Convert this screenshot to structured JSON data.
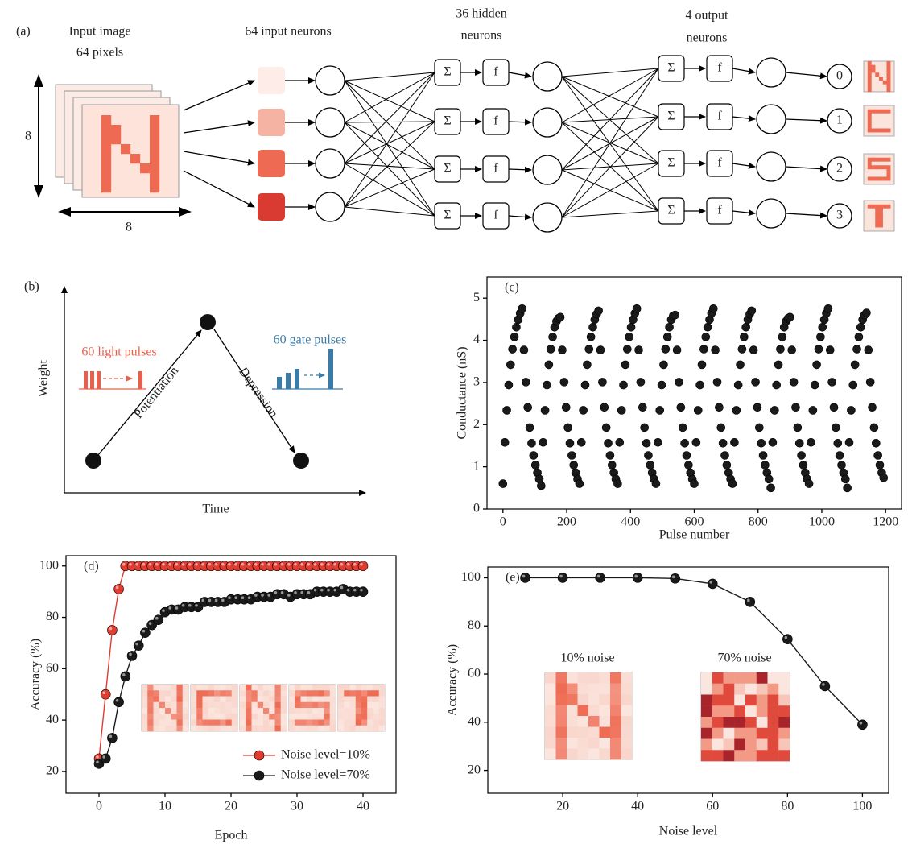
{
  "panel_a": {
    "label": "(a)",
    "input_title": [
      "Input image",
      "64 pixels"
    ],
    "dim_labels": [
      "8",
      "8"
    ],
    "input_neurons_title": "64 input neurons",
    "hidden_title": [
      "36 hidden",
      "neurons"
    ],
    "output_title": [
      "4 output",
      "neurons"
    ],
    "sum_symbol": "Σ",
    "activation_symbol": "f",
    "output_labels": [
      "0",
      "1",
      "2",
      "3"
    ]
  },
  "panel_b": {
    "label": "(b)",
    "y_label": "Weight",
    "x_label": "Time",
    "rise_label": "Potentiation",
    "fall_label": "Depression",
    "light_label": "60 light pulses",
    "gate_label": "60 gate pulses"
  },
  "chart_data": [
    {
      "type": "scatter",
      "panel_label": "(c)",
      "x_label": "Pulse number",
      "y_label": "Conductance (nS)",
      "color": "#1a1a1a",
      "xlim": [
        -50,
        1250
      ],
      "xticks": [
        0,
        200,
        400,
        600,
        800,
        1000,
        1200
      ],
      "ylim": [
        0,
        5.5
      ],
      "yticks": [
        0,
        1,
        2,
        3,
        4,
        5
      ],
      "x": [
        0,
        6,
        12,
        18,
        24,
        30,
        36,
        42,
        48,
        54,
        60,
        66,
        72,
        78,
        84,
        90,
        96,
        102,
        108,
        114,
        120,
        126,
        132,
        138,
        144,
        150,
        156,
        162,
        168,
        174,
        180,
        186,
        192,
        198,
        204,
        210,
        216,
        222,
        228,
        234,
        240,
        246,
        252,
        258,
        264,
        270,
        276,
        282,
        288,
        294,
        300,
        306,
        312,
        318,
        324,
        330,
        336,
        342,
        348,
        354,
        360,
        366,
        372,
        378,
        384,
        390,
        396,
        402,
        408,
        414,
        420,
        426,
        432,
        438,
        444,
        450,
        456,
        462,
        468,
        474,
        480,
        486,
        492,
        498,
        504,
        510,
        516,
        522,
        528,
        534,
        540,
        546,
        552,
        558,
        564,
        570,
        576,
        582,
        588,
        594,
        600,
        606,
        612,
        618,
        624,
        630,
        636,
        642,
        648,
        654,
        660,
        666,
        672,
        678,
        684,
        690,
        696,
        702,
        708,
        714,
        720,
        726,
        732,
        738,
        744,
        750,
        756,
        762,
        768,
        774,
        780,
        786,
        792,
        798,
        804,
        810,
        816,
        822,
        828,
        834,
        840,
        846,
        852,
        858,
        864,
        870,
        876,
        882,
        888,
        894,
        900,
        906,
        912,
        918,
        924,
        930,
        936,
        942,
        948,
        954,
        960,
        966,
        972,
        978,
        984,
        990,
        996,
        1002,
        1008,
        1014,
        1020,
        1026,
        1032,
        1038,
        1044,
        1050,
        1056,
        1062,
        1068,
        1074,
        1080,
        1086,
        1092,
        1098,
        1104,
        1110,
        1116,
        1122,
        1128,
        1134,
        1140,
        1146,
        1152,
        1158,
        1164,
        1170,
        1176,
        1182,
        1188,
        1194
      ],
      "values": [
        0.6,
        1.58,
        2.34,
        2.94,
        3.42,
        3.79,
        4.08,
        4.31,
        4.49,
        4.64,
        4.75,
        3.77,
        3.01,
        2.41,
        1.93,
        1.56,
        1.27,
        1.04,
        0.86,
        0.71,
        0.55,
        1.58,
        2.34,
        2.94,
        3.42,
        3.79,
        4.08,
        4.31,
        4.45,
        4.52,
        4.55,
        3.77,
        3.01,
        2.41,
        1.93,
        1.56,
        1.27,
        1.04,
        0.86,
        0.71,
        0.6,
        1.58,
        2.34,
        2.94,
        3.42,
        3.79,
        4.08,
        4.31,
        4.49,
        4.62,
        4.7,
        3.77,
        3.01,
        2.41,
        1.93,
        1.56,
        1.27,
        1.04,
        0.86,
        0.71,
        0.6,
        1.58,
        2.34,
        2.94,
        3.42,
        3.79,
        4.08,
        4.31,
        4.49,
        4.64,
        4.75,
        3.77,
        3.01,
        2.41,
        1.93,
        1.56,
        1.27,
        1.04,
        0.86,
        0.71,
        0.6,
        1.58,
        2.34,
        2.94,
        3.42,
        3.79,
        4.08,
        4.31,
        4.49,
        4.58,
        4.6,
        3.77,
        3.01,
        2.41,
        1.93,
        1.56,
        1.27,
        1.04,
        0.86,
        0.71,
        0.6,
        1.58,
        2.34,
        2.94,
        3.42,
        3.79,
        4.08,
        4.31,
        4.49,
        4.64,
        4.75,
        3.77,
        3.01,
        2.41,
        1.93,
        1.56,
        1.27,
        1.04,
        0.86,
        0.71,
        0.6,
        1.58,
        2.34,
        2.94,
        3.42,
        3.79,
        4.08,
        4.31,
        4.49,
        4.62,
        4.7,
        3.77,
        3.01,
        2.41,
        1.93,
        1.56,
        1.27,
        1.04,
        0.86,
        0.71,
        0.5,
        1.58,
        2.34,
        2.94,
        3.42,
        3.79,
        4.08,
        4.31,
        4.45,
        4.52,
        4.55,
        3.77,
        3.01,
        2.41,
        1.93,
        1.56,
        1.27,
        1.04,
        0.86,
        0.71,
        0.6,
        1.58,
        2.34,
        2.94,
        3.42,
        3.79,
        4.08,
        4.31,
        4.49,
        4.64,
        4.75,
        3.77,
        3.01,
        2.41,
        1.93,
        1.56,
        1.27,
        1.04,
        0.86,
        0.71,
        0.5,
        1.58,
        2.34,
        2.94,
        3.42,
        3.79,
        4.08,
        4.31,
        4.49,
        4.6,
        4.65,
        3.77,
        3.01,
        2.41,
        1.93,
        1.56,
        1.27,
        1.04,
        0.86,
        0.74
      ]
    },
    {
      "type": "line",
      "panel_label": "(d)",
      "x_label": "Epoch",
      "y_label": "Accuracy (%)",
      "markers": true,
      "legend": "lower right",
      "xlim": [
        -5,
        45
      ],
      "xticks": [
        0,
        10,
        20,
        30,
        40
      ],
      "ylim": [
        11.5,
        104
      ],
      "yticks": [
        20,
        40,
        60,
        80,
        100
      ],
      "x": [
        0,
        1,
        2,
        3,
        4,
        5,
        6,
        7,
        8,
        9,
        10,
        11,
        12,
        13,
        14,
        15,
        16,
        17,
        18,
        19,
        20,
        21,
        22,
        23,
        24,
        25,
        26,
        27,
        28,
        29,
        30,
        31,
        32,
        33,
        34,
        35,
        36,
        37,
        38,
        39,
        40
      ],
      "series": [
        {
          "name": "Noise level=10%",
          "color": "#e23b30",
          "values": [
            25,
            50,
            75,
            91,
            100,
            100,
            100,
            100,
            100,
            100,
            100,
            100,
            100,
            100,
            100,
            100,
            100,
            100,
            100,
            100,
            100,
            100,
            100,
            100,
            100,
            100,
            100,
            100,
            100,
            100,
            100,
            100,
            100,
            100,
            100,
            100,
            100,
            100,
            100,
            100,
            100
          ]
        },
        {
          "name": "Noise level=70%",
          "color": "#1a1a1a",
          "values": [
            23,
            25,
            33,
            47,
            57,
            65,
            69,
            74,
            77,
            79,
            82,
            83,
            83,
            84,
            84,
            84,
            86,
            86,
            86,
            86,
            87,
            87,
            87,
            87,
            88,
            88,
            88,
            89,
            89,
            88,
            89,
            89,
            89,
            90,
            90,
            90,
            90,
            91,
            90,
            90,
            90
          ]
        }
      ]
    },
    {
      "type": "line",
      "panel_label": "(e)",
      "x_label": "Noise level",
      "y_label": "Accuracy (%)",
      "markers": true,
      "color": "#1a1a1a",
      "inset_labels": [
        "10% noise",
        "70% noise"
      ],
      "xlim": [
        0,
        107
      ],
      "xticks": [
        20,
        40,
        60,
        80,
        100
      ],
      "ylim": [
        10.5,
        104.5
      ],
      "yticks": [
        20,
        40,
        60,
        80,
        100
      ],
      "x": [
        10,
        20,
        30,
        40,
        50,
        60,
        70,
        80,
        90,
        100
      ],
      "values": [
        100,
        100,
        100,
        100,
        99.7,
        97.5,
        90,
        74.5,
        55,
        39
      ]
    }
  ]
}
